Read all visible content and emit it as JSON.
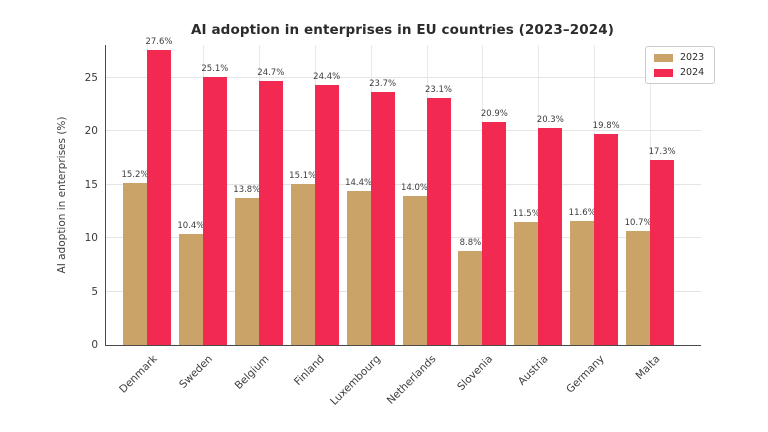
{
  "chart_data": {
    "type": "bar",
    "title": "AI adoption in enterprises in EU countries (2023–2024)",
    "xlabel": "",
    "ylabel": "AI adoption in enterprises (%)",
    "categories": [
      "Denmark",
      "Sweden",
      "Belgium",
      "Finland",
      "Luxembourg",
      "Netherlands",
      "Slovenia",
      "Austria",
      "Germany",
      "Malta"
    ],
    "series": [
      {
        "name": "2023",
        "color": "#C9A367",
        "values": [
          15.2,
          10.4,
          13.8,
          15.1,
          14.4,
          14.0,
          8.8,
          11.5,
          11.6,
          10.7
        ]
      },
      {
        "name": "2024",
        "color": "#F22A52",
        "values": [
          27.6,
          25.1,
          24.7,
          24.4,
          23.7,
          23.1,
          20.9,
          20.3,
          19.8,
          17.3
        ]
      }
    ],
    "yticks": [
      0,
      5,
      10,
      15,
      20,
      25
    ],
    "ylim": [
      0,
      28.1
    ],
    "value_label_suffix": "%",
    "grid": true,
    "legend_position": "upper right"
  }
}
